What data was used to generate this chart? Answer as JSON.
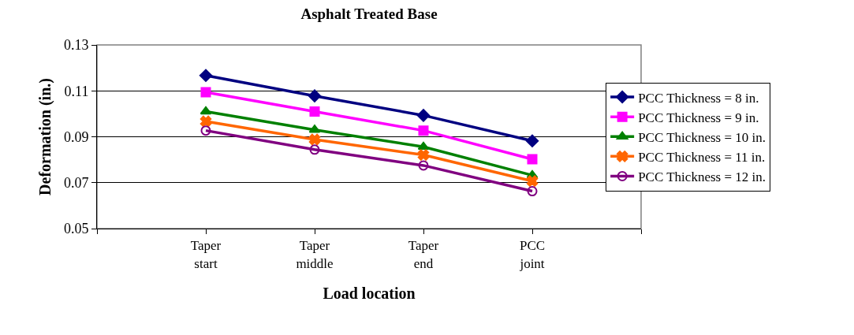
{
  "chart_data": {
    "type": "line",
    "title": "Asphalt Treated Base",
    "xlabel": "Load location",
    "ylabel": "Deformation (in.)",
    "categories": [
      null,
      "Taper\nstart",
      "Taper\nmiddle",
      "Taper\nend",
      "PCC\njoint",
      null
    ],
    "series": [
      {
        "name": "PCC Thickness = 8 in.",
        "color": "#000080",
        "marker": "diamond",
        "values": [
          null,
          0.1167,
          0.1078,
          0.0993,
          0.0882,
          null
        ]
      },
      {
        "name": "PCC Thickness = 9 in.",
        "color": "#ff00ff",
        "marker": "square",
        "values": [
          null,
          0.1094,
          0.101,
          0.0927,
          0.0802,
          null
        ]
      },
      {
        "name": "PCC Thickness = 10 in.",
        "color": "#008000",
        "marker": "triangle",
        "values": [
          null,
          0.101,
          0.093,
          0.0856,
          0.0732,
          null
        ]
      },
      {
        "name": "PCC Thickness = 11 in.",
        "color": "#ff6600",
        "marker": "cross",
        "values": [
          null,
          0.0967,
          0.0888,
          0.0821,
          0.0707,
          null
        ]
      },
      {
        "name": "PCC Thickness = 12 in.",
        "color": "#800080",
        "marker": "circle",
        "values": [
          null,
          0.0927,
          0.0844,
          0.0775,
          0.0663,
          null
        ]
      }
    ],
    "ylim": [
      0.05,
      0.13
    ],
    "yticks": [
      0.05,
      0.07,
      0.09,
      0.11,
      0.13
    ],
    "grid": "y",
    "legend": "right",
    "line_style": "solid"
  }
}
